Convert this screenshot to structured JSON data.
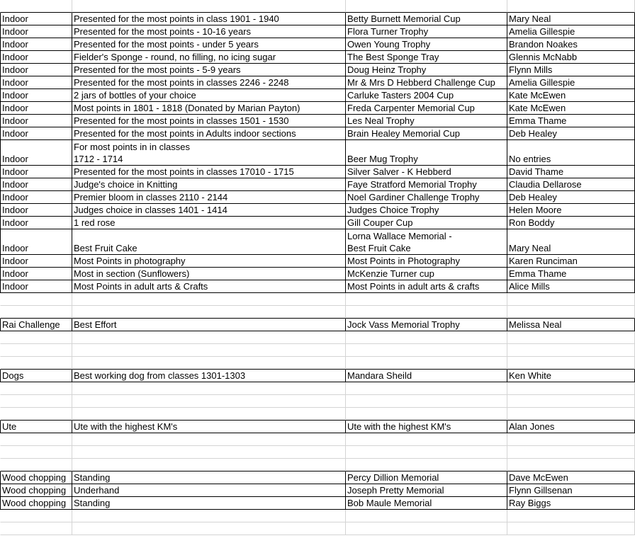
{
  "rows": [
    null,
    [
      "Indoor",
      "Presented for the most points in class 1901 - 1940",
      "Betty Burnett Memorial Cup",
      "Mary Neal"
    ],
    [
      "Indoor",
      "Presented for the most points - 10-16 years",
      "Flora Turner Trophy",
      "Amelia Gillespie"
    ],
    [
      "Indoor",
      "Presented for the most points - under 5 years",
      "Owen Young Trophy",
      "Brandon Noakes"
    ],
    [
      "Indoor",
      "Fielder's Sponge - round, no filling, no icing sugar",
      "The Best Sponge Tray",
      "Glennis McNabb"
    ],
    [
      "Indoor",
      "Presented for the most points - 5-9 years",
      "Doug Heinz Trophy",
      "Flynn Mills"
    ],
    [
      "Indoor",
      "Presented for the most points in classes 2246 - 2248",
      "Mr & Mrs D Hebberd Challenge Cup",
      "Amelia Gillespie"
    ],
    [
      "Indoor",
      "2 jars of bottles of your choice",
      "Carluke Tasters 2004 Cup",
      "Kate McEwen"
    ],
    [
      "Indoor",
      "Most points in 1801 - 1818 (Donated by Marian Payton)",
      "Freda Carpenter Memorial Cup",
      "Kate McEwen"
    ],
    [
      "Indoor",
      "Presented for the most points in classes 1501 - 1530",
      "Les Neal Trophy",
      "Emma Thame"
    ],
    [
      "Indoor",
      "Presented for the most points in Adults indoor sections",
      "Brain Healey Memorial Cup",
      "Deb Healey"
    ],
    [
      "Indoor",
      "For most points in in classes\n1712 - 1714",
      "Beer Mug Trophy",
      "No entries"
    ],
    [
      "Indoor",
      "Presented for the most points in classes 17010 - 1715",
      "Silver Salver - K Hebberd",
      "David Thame"
    ],
    [
      "Indoor",
      "Judge's choice in Knitting",
      "Faye Stratford Memorial Trophy",
      "Claudia Dellarose"
    ],
    [
      "Indoor",
      "Premier bloom in classes 2110 - 2144",
      "Noel Gardiner Challenge Trophy",
      "Deb Healey"
    ],
    [
      "Indoor",
      "Judges choice in classes 1401 - 1414",
      "Judges Choice Trophy",
      "Helen Moore"
    ],
    [
      "Indoor",
      "1 red rose",
      "Gill Couper Cup",
      "Ron Boddy"
    ],
    [
      "Indoor",
      "Best Fruit Cake",
      "Lorna Wallace Memorial -\nBest Fruit Cake",
      "Mary Neal"
    ],
    [
      "Indoor",
      "Most Points in photography",
      "Most Points in Photography",
      "Karen Runciman"
    ],
    [
      "Indoor",
      "Most in section (Sunflowers)",
      "McKenzie Turner cup",
      "Emma Thame"
    ],
    [
      "Indoor",
      "Most Points in adult arts & Crafts",
      "Most Points in adult arts & crafts",
      "Alice Mills"
    ],
    null,
    null,
    [
      "Rai Challenge",
      "Best Effort",
      "Jock Vass Memorial Trophy",
      "Melissa Neal"
    ],
    null,
    null,
    null,
    [
      "Dogs",
      "Best working dog from classes 1301-1303",
      "Mandara Sheild",
      "Ken White"
    ],
    null,
    null,
    null,
    [
      "Ute",
      "Ute with the highest KM's",
      "Ute with the highest KM's",
      "Alan Jones"
    ],
    null,
    null,
    null,
    [
      "Wood chopping",
      "Standing",
      "Percy Dillion Memorial",
      "Dave McEwen"
    ],
    [
      "Wood chopping",
      "Underhand",
      "Joseph Pretty Memorial",
      "Flynn Gillsenan"
    ],
    [
      "Wood chopping",
      "Standing",
      "Bob Maule Memorial",
      "Ray Biggs"
    ],
    null,
    null
  ]
}
